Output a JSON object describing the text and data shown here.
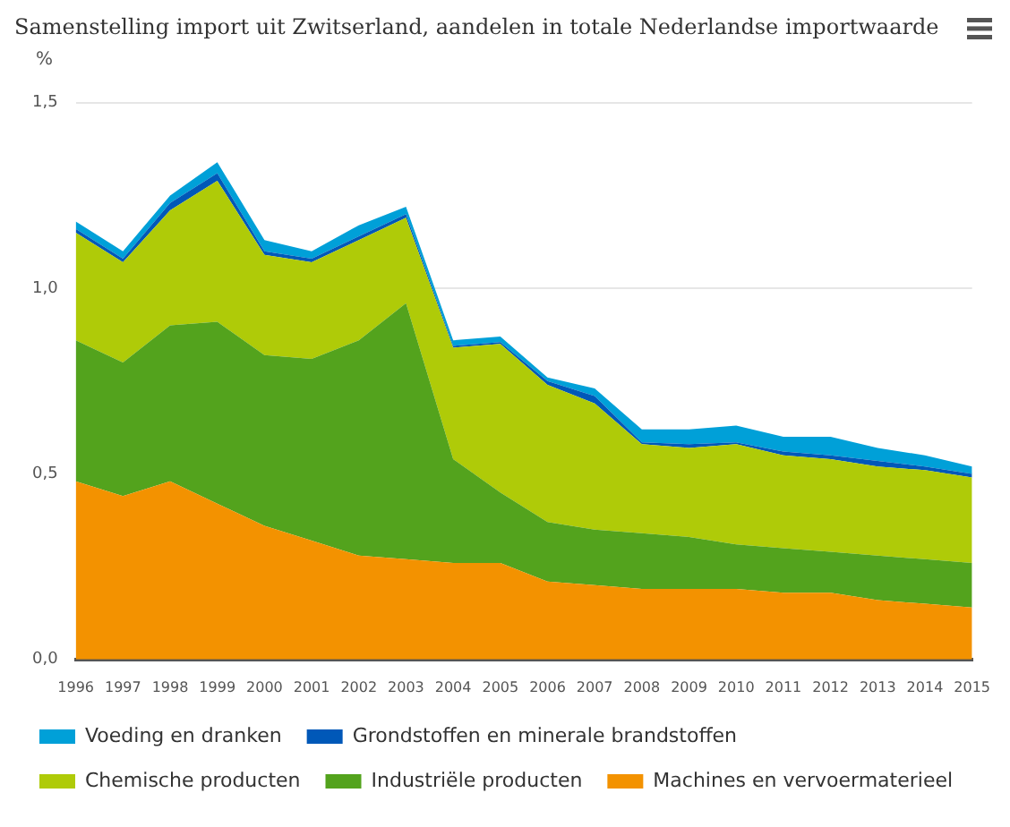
{
  "chart_data": {
    "type": "area",
    "title": "Samenstelling import uit Zwitserland, aandelen in totale Nederlandse importwaarde",
    "ylabel": "%",
    "categories": [
      "1996",
      "1997",
      "1998",
      "1999",
      "2000",
      "2001",
      "2002",
      "2003",
      "2004",
      "2005",
      "2006",
      "2007",
      "2008",
      "2009",
      "2010",
      "2011",
      "2012",
      "2013",
      "2014",
      "2015"
    ],
    "stacked": true,
    "series": [
      {
        "name": "Machines en vervoermaterieel",
        "color": "#f39200",
        "values": [
          0.48,
          0.44,
          0.48,
          0.42,
          0.36,
          0.32,
          0.28,
          0.27,
          0.26,
          0.26,
          0.21,
          0.2,
          0.19,
          0.19,
          0.19,
          0.18,
          0.18,
          0.16,
          0.15,
          0.14
        ]
      },
      {
        "name": "Industriële producten",
        "color": "#53a31d",
        "values": [
          0.38,
          0.36,
          0.42,
          0.49,
          0.46,
          0.49,
          0.58,
          0.69,
          0.28,
          0.19,
          0.16,
          0.15,
          0.15,
          0.14,
          0.12,
          0.12,
          0.11,
          0.12,
          0.12,
          0.12
        ]
      },
      {
        "name": "Chemische producten",
        "color": "#afcb08",
        "values": [
          0.29,
          0.27,
          0.31,
          0.38,
          0.27,
          0.26,
          0.27,
          0.23,
          0.3,
          0.4,
          0.37,
          0.34,
          0.24,
          0.24,
          0.27,
          0.25,
          0.25,
          0.24,
          0.24,
          0.23
        ]
      },
      {
        "name": "Grondstoffen en minerale brandstoffen",
        "color": "#0058b8",
        "values": [
          0.01,
          0.01,
          0.02,
          0.02,
          0.01,
          0.01,
          0.01,
          0.01,
          0.005,
          0.005,
          0.01,
          0.02,
          0.005,
          0.01,
          0.005,
          0.01,
          0.01,
          0.015,
          0.01,
          0.01
        ]
      },
      {
        "name": "Voeding en dranken",
        "color": "#00a0d8",
        "values": [
          0.02,
          0.02,
          0.02,
          0.03,
          0.03,
          0.02,
          0.03,
          0.02,
          0.015,
          0.015,
          0.01,
          0.02,
          0.035,
          0.04,
          0.045,
          0.04,
          0.05,
          0.035,
          0.03,
          0.02
        ]
      }
    ],
    "ylim": [
      0,
      1.5
    ],
    "yticks": [
      {
        "value": 0,
        "label": "0,0"
      },
      {
        "value": 0.5,
        "label": "0,5"
      },
      {
        "value": 1,
        "label": "1,0"
      },
      {
        "value": 1.5,
        "label": "1,5"
      }
    ],
    "grid": "y",
    "legend": "bottom"
  }
}
